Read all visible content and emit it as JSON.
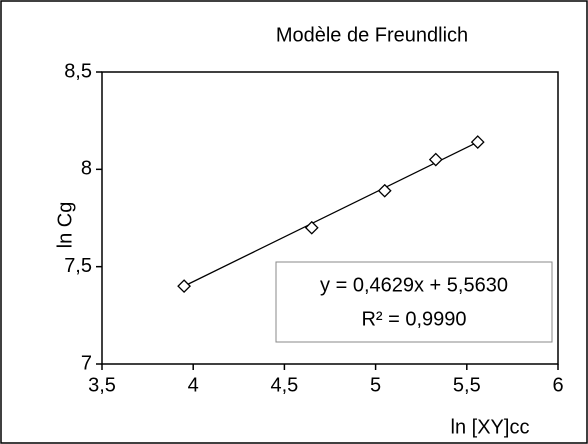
{
  "chart_data": {
    "type": "scatter",
    "title": "Modèle de Freundlich",
    "x_label": "ln [XY]cc",
    "y_label": "ln Cg",
    "annotation": [
      "y = 0,4629x + 5,5630",
      "R² = 0,9990"
    ],
    "x": [
      3.95,
      4.65,
      5.05,
      5.33,
      5.56
    ],
    "values": [
      7.4,
      7.7,
      7.89,
      8.05,
      8.14
    ],
    "color": "#000000",
    "xlim": [
      3.5,
      6
    ],
    "xticks": [
      {
        "value": 3.5,
        "label": "3,5"
      },
      4,
      {
        "value": 4.5,
        "label": "4,5"
      },
      5,
      {
        "value": 5.5,
        "label": "5,5"
      },
      6
    ],
    "ylim": [
      7,
      8.5
    ],
    "yticks": [
      7,
      {
        "value": 7.5,
        "label": "7,5"
      },
      8,
      {
        "value": 8.5,
        "label": "8,5"
      }
    ]
  }
}
